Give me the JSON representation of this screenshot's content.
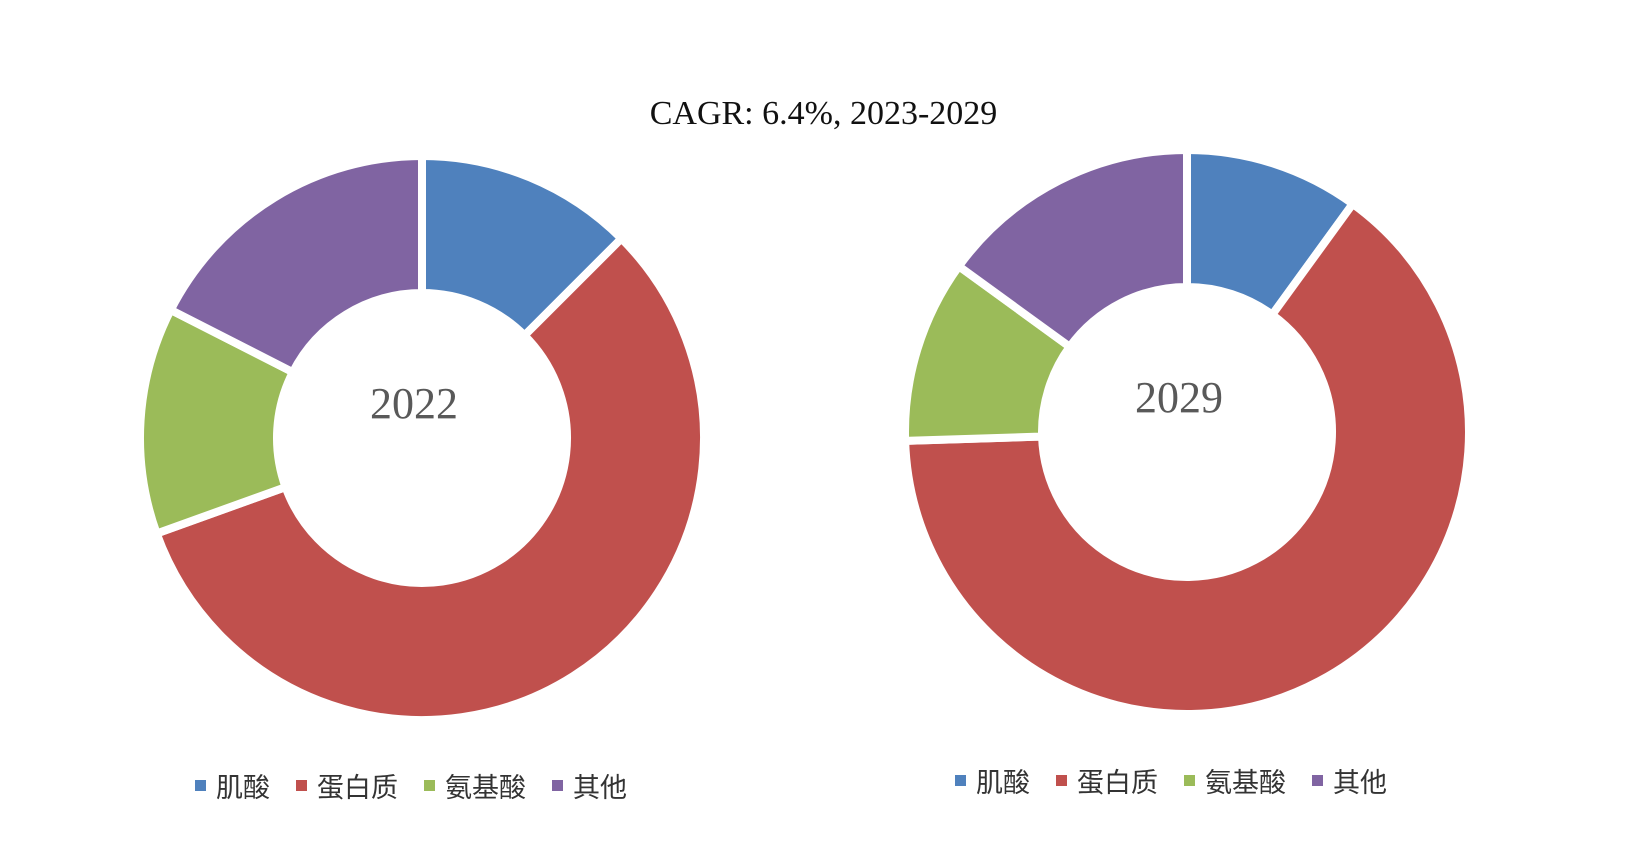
{
  "title": "CAGR:   6.4%, 2023-2029",
  "chart_data": [
    {
      "type": "donut",
      "center_label": "2022",
      "categories": [
        "肌酸",
        "蛋白质",
        "氨基酸",
        "其他"
      ],
      "values": [
        12.5,
        57.0,
        13.0,
        17.5
      ],
      "colors": [
        "#4F81BD",
        "#C0504D",
        "#9BBB59",
        "#8064A2"
      ],
      "legend_position": "bottom"
    },
    {
      "type": "donut",
      "center_label": "2029",
      "categories": [
        "肌酸",
        "蛋白质",
        "氨基酸",
        "其他"
      ],
      "values": [
        10.0,
        64.5,
        10.5,
        15.0
      ],
      "colors": [
        "#4F81BD",
        "#C0504D",
        "#9BBB59",
        "#8064A2"
      ],
      "legend_position": "bottom"
    }
  ]
}
